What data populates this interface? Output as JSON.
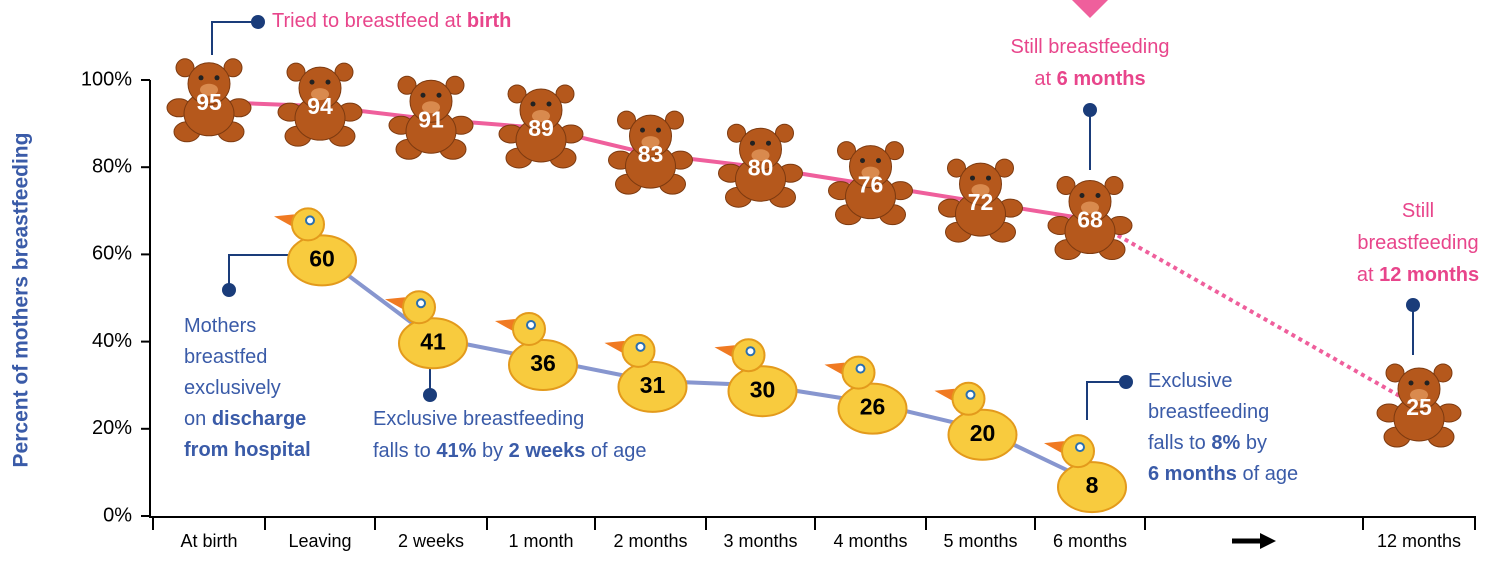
{
  "chart_data": {
    "type": "line",
    "y_label": "Percent of mothers breastfeeding",
    "categories": [
      "At birth",
      "Leaving",
      "2 weeks",
      "1 month",
      "2 months",
      "3 months",
      "4 months",
      "5 months",
      "6 months",
      null,
      "12 months"
    ],
    "series": [
      {
        "icon": "teddy",
        "color": "#ef5f9c",
        "values": [
          95,
          94,
          91,
          89,
          83,
          80,
          76,
          72,
          68,
          null,
          25
        ]
      },
      {
        "icon": "duck",
        "color": "#8796cf",
        "values": [
          null,
          60,
          41,
          36,
          31,
          30,
          26,
          20,
          8,
          null,
          null
        ]
      }
    ],
    "ylim": [
      0,
      100
    ],
    "yticks": [
      {
        "value": 0,
        "label": "0%"
      },
      {
        "value": 20,
        "label": "20%"
      },
      {
        "value": 40,
        "label": "40%"
      },
      {
        "value": 60,
        "label": "60%"
      },
      {
        "value": 80,
        "label": "80%"
      },
      {
        "value": 100,
        "label": "100%"
      }
    ],
    "annotations": [
      {
        "color": "#e8458b",
        "lines": [
          [
            {
              "text": "Tried to breastfeed at "
            },
            {
              "text": "birth",
              "bold": true
            }
          ]
        ]
      },
      {
        "color": "#e8458b",
        "lines": [
          [
            {
              "text": "Still breastfeeding"
            }
          ],
          [
            {
              "text": "at "
            },
            {
              "text": "6 months",
              "bold": true
            }
          ]
        ]
      },
      {
        "color": "#e8458b",
        "lines": [
          [
            {
              "text": "Still"
            }
          ],
          [
            {
              "text": "breastfeeding"
            }
          ],
          [
            {
              "text": "at "
            },
            {
              "text": "12 months",
              "bold": true
            }
          ]
        ]
      },
      {
        "color": "#3a5ba8",
        "lines": [
          [
            {
              "text": "Mothers"
            }
          ],
          [
            {
              "text": "breastfed"
            }
          ],
          [
            {
              "text": "exclusively"
            }
          ],
          [
            {
              "text": "on "
            },
            {
              "text": "discharge",
              "bold": true
            }
          ],
          [
            {
              "text": "from hospital",
              "bold": true
            }
          ]
        ]
      },
      {
        "color": "#3a5ba8",
        "lines": [
          [
            {
              "text": "Exclusive breastfeeding"
            }
          ],
          [
            {
              "text": "falls to "
            },
            {
              "text": "41%",
              "bold": true
            },
            {
              "text": " by "
            },
            {
              "text": "2 weeks",
              "bold": true
            },
            {
              "text": " of age"
            }
          ]
        ]
      },
      {
        "color": "#3a5ba8",
        "lines": [
          [
            {
              "text": "Exclusive"
            }
          ],
          [
            {
              "text": "breastfeeding"
            }
          ],
          [
            {
              "text": "falls to "
            },
            {
              "text": "8%",
              "bold": true
            },
            {
              "text": " by"
            }
          ],
          [
            {
              "text": "6 months",
              "bold": true
            },
            {
              "text": " of age"
            }
          ]
        ]
      }
    ]
  }
}
